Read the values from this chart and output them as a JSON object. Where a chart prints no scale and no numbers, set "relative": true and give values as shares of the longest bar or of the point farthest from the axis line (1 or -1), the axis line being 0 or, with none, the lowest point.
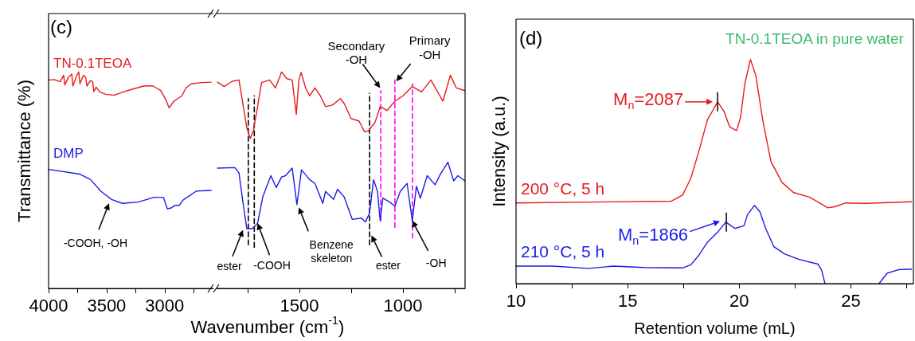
{
  "chart_data": [
    {
      "type": "line",
      "relative": true,
      "ylabel": "Transmittance (%)",
      "xlim": [
        4000,
        2580
      ],
      "xticks": [
        4000,
        {
          "value": 3750,
          "label": null
        },
        3500,
        {
          "value": 3250,
          "label": null
        },
        3000,
        {
          "value": 2750,
          "label": null
        }
      ],
      "annotations": [
        "(c)",
        {
          "text": "-COOH, -OH",
          "x": 3479,
          "y": 0.393
        }
      ],
      "series": [
        {
          "name": "TN-0.1TEOA",
          "color": "#e8191c",
          "x": [
            4000,
            3950,
            3900,
            3870,
            3860,
            3830,
            3800,
            3790,
            3760,
            3740,
            3730,
            3700,
            3680,
            3670,
            3640,
            3620,
            3610,
            3590,
            3559,
            3502,
            3434,
            3320,
            3183,
            3103,
            3034,
            2989,
            2961,
            2920,
            2852,
            2817,
            2772,
            2680,
            2600
          ],
          "values": [
            0.963,
            0.965,
            0.955,
            0.985,
            0.94,
            0.975,
            0.99,
            0.935,
            0.98,
            1.0,
            0.945,
            0.985,
            0.975,
            0.935,
            0.96,
            0.955,
            0.91,
            0.93,
            0.908,
            0.896,
            0.893,
            0.914,
            0.935,
            0.936,
            0.914,
            0.871,
            0.834,
            0.865,
            0.89,
            0.926,
            0.945,
            0.951,
            0.953
          ]
        },
        {
          "name": "DMP",
          "color": "#1c1ce8",
          "x": [
            4000,
            3731,
            3639,
            3548,
            3457,
            3365,
            3228,
            3091,
            3011,
            2977,
            2943,
            2909,
            2874,
            2840,
            2726,
            2600
          ],
          "values": [
            0.55,
            0.528,
            0.503,
            0.448,
            0.411,
            0.393,
            0.399,
            0.421,
            0.421,
            0.368,
            0.372,
            0.384,
            0.384,
            0.409,
            0.45,
            0.453
          ]
        }
      ]
    },
    {
      "type": "line",
      "relative": true,
      "xlabel": "Wavenumber (cm$^{-1}$)",
      "xlim": [
        1900,
        700
      ],
      "xticks": [
        {
          "value": 1750,
          "label": null
        },
        1500,
        {
          "value": 1250,
          "label": null
        },
        1000,
        {
          "value": 750,
          "label": null
        }
      ],
      "annotations": [
        {
          "text": "ester",
          "x": 1773,
          "y": 0.27
        },
        {
          "text": "-COOH",
          "x": 1702,
          "y": 0.301
        },
        {
          "text": "Benzene\nskeleton",
          "x": 1503,
          "y": 0.374
        },
        {
          "text": "ester",
          "x": 1152,
          "y": 0.245
        },
        {
          "text": "-OH",
          "x": 955,
          "y": 0.313
        },
        {
          "text": "Secondary\n-OH",
          "x": 1110,
          "y": 0.926
        },
        {
          "text": "Primary\n-OH",
          "x": 1032,
          "y": 0.957
        }
      ],
      "series": [
        {
          "color": "#e8191c",
          "x": [
            1896,
            1863,
            1825,
            1792,
            1773,
            1754,
            1737,
            1722,
            1702,
            1683,
            1644,
            1616,
            1586,
            1561,
            1535,
            1515,
            1503,
            1492,
            1470,
            1451,
            1425,
            1399,
            1374,
            1341,
            1302,
            1283,
            1251,
            1212,
            1186,
            1167,
            1135,
            1110,
            1077,
            1039,
            1000,
            955,
            910,
            865,
            807,
            771,
            742,
            701
          ],
          "values": [
            0.953,
            0.933,
            0.957,
            0.963,
            0.853,
            0.742,
            0.693,
            0.73,
            0.84,
            0.951,
            0.963,
            0.926,
            1.0,
            0.969,
            0.963,
            0.804,
            0.963,
            0.998,
            0.926,
            0.89,
            0.926,
            0.89,
            0.84,
            0.847,
            0.877,
            0.853,
            0.785,
            0.773,
            0.724,
            0.728,
            0.767,
            0.84,
            0.822,
            0.865,
            0.89,
            0.933,
            0.908,
            0.963,
            0.865,
            0.985,
            0.926,
            0.914
          ]
        },
        {
          "color": "#1c1ce8",
          "x": [
            1896,
            1812,
            1792,
            1773,
            1754,
            1728,
            1702,
            1677,
            1638,
            1612,
            1586,
            1567,
            1535,
            1512,
            1490,
            1451,
            1425,
            1387,
            1374,
            1335,
            1316,
            1284,
            1245,
            1200,
            1181,
            1161,
            1142,
            1123,
            1110,
            1097,
            1064,
            1039,
            1013,
            980,
            955,
            935,
            916,
            883,
            845,
            819,
            783,
            755,
            735,
            701
          ],
          "values": [
            0.556,
            0.558,
            0.534,
            0.399,
            0.276,
            0.276,
            0.301,
            0.423,
            0.521,
            0.466,
            0.515,
            0.521,
            0.556,
            0.387,
            0.548,
            0.503,
            0.485,
            0.393,
            0.448,
            0.411,
            0.458,
            0.423,
            0.319,
            0.325,
            0.307,
            0.35,
            0.503,
            0.448,
            0.313,
            0.417,
            0.399,
            0.38,
            0.448,
            0.485,
            0.313,
            0.472,
            0.417,
            0.521,
            0.479,
            0.528,
            0.583,
            0.497,
            0.521,
            0.497
          ]
        },
        {
          "type": "line",
          "color": "#000000",
          "line_style": "dashed",
          "x": [
            1747,
            1747
          ],
          "values": [
            0.202,
            0.877
          ]
        },
        {
          "type": "line",
          "color": "#000000",
          "line_style": "dashed",
          "x": [
            1718,
            1718
          ],
          "values": [
            0.19,
            0.89
          ]
        },
        {
          "type": "line",
          "color": "#000000",
          "line_style": "dashed",
          "x": [
            1161,
            1161
          ],
          "values": [
            0.202,
            0.902
          ]
        },
        {
          "type": "line",
          "color": "#ff00ff",
          "line_style": "dashed",
          "x": [
            1107,
            1107
          ],
          "values": [
            0.313,
            0.914
          ]
        },
        {
          "type": "line",
          "color": "#ff00ff",
          "line_style": "dashed",
          "x": [
            1039,
            1039
          ],
          "values": [
            0.282,
            0.963
          ]
        },
        {
          "type": "line",
          "color": "#ff00ff",
          "line_style": "dashed",
          "x": [
            954,
            954
          ],
          "values": [
            0.233,
            0.945
          ]
        }
      ]
    },
    {
      "type": "line",
      "relative": true,
      "title": "TN-0.1TEOA in pure water",
      "xlabel": "Retention volume (mL)",
      "ylabel": "Intensity (a.u.)",
      "xlim": [
        10,
        27.8
      ],
      "xticks": [
        10,
        {
          "value": 12.5,
          "label": null
        },
        15,
        {
          "value": 17.5,
          "label": null
        },
        20,
        {
          "value": 22.5,
          "label": null
        },
        25,
        {
          "value": 27.5,
          "label": null
        }
      ],
      "annotations": [
        "(d)",
        {
          "text": "M$_{n}$=2087",
          "x": 19.03,
          "y": 0.811
        },
        {
          "text": "M$_{n}$=1866",
          "x": 19.42,
          "y": 0.275
        }
      ],
      "series": [
        {
          "name": "200 °C, 5 h",
          "color": "#e8191c",
          "x": [
            10,
            16.96,
            17.46,
            17.83,
            18.2,
            18.57,
            19.03,
            19.32,
            19.57,
            19.88,
            20.06,
            20.25,
            20.5,
            20.74,
            21.05,
            21.42,
            21.92,
            22.42,
            23.16,
            23.53,
            23.97,
            24.28,
            24.77,
            25.64,
            27.72
          ],
          "values": [
            0.36,
            0.368,
            0.395,
            0.47,
            0.594,
            0.73,
            0.811,
            0.768,
            0.699,
            0.683,
            0.743,
            0.892,
            1.0,
            0.929,
            0.73,
            0.544,
            0.451,
            0.407,
            0.385,
            0.364,
            0.338,
            0.343,
            0.36,
            0.358,
            0.365
          ]
        },
        {
          "name": "210 °C, 5 h",
          "color": "#1c1ce8",
          "x": [
            10,
            11.64,
            13.25,
            14.36,
            15.72,
            17.46,
            17.83,
            18.2,
            18.57,
            19.07,
            19.4,
            19.63,
            19.81,
            20.21,
            20.37,
            20.68,
            20.93,
            21.18,
            21.55,
            22.04,
            22.66,
            23.53,
            23.69,
            23.84,
            25,
            26.26,
            26.63,
            27.13,
            27.72
          ],
          "values": [
            0.078,
            0.078,
            0.068,
            0.078,
            0.072,
            0.07,
            0.084,
            0.128,
            0.184,
            0.234,
            0.275,
            0.258,
            0.246,
            0.258,
            0.308,
            0.349,
            0.32,
            0.246,
            0.165,
            0.132,
            0.109,
            0.087,
            0.06,
            0,
            null,
            0,
            0.047,
            0.062,
            0.065
          ]
        }
      ]
    }
  ]
}
